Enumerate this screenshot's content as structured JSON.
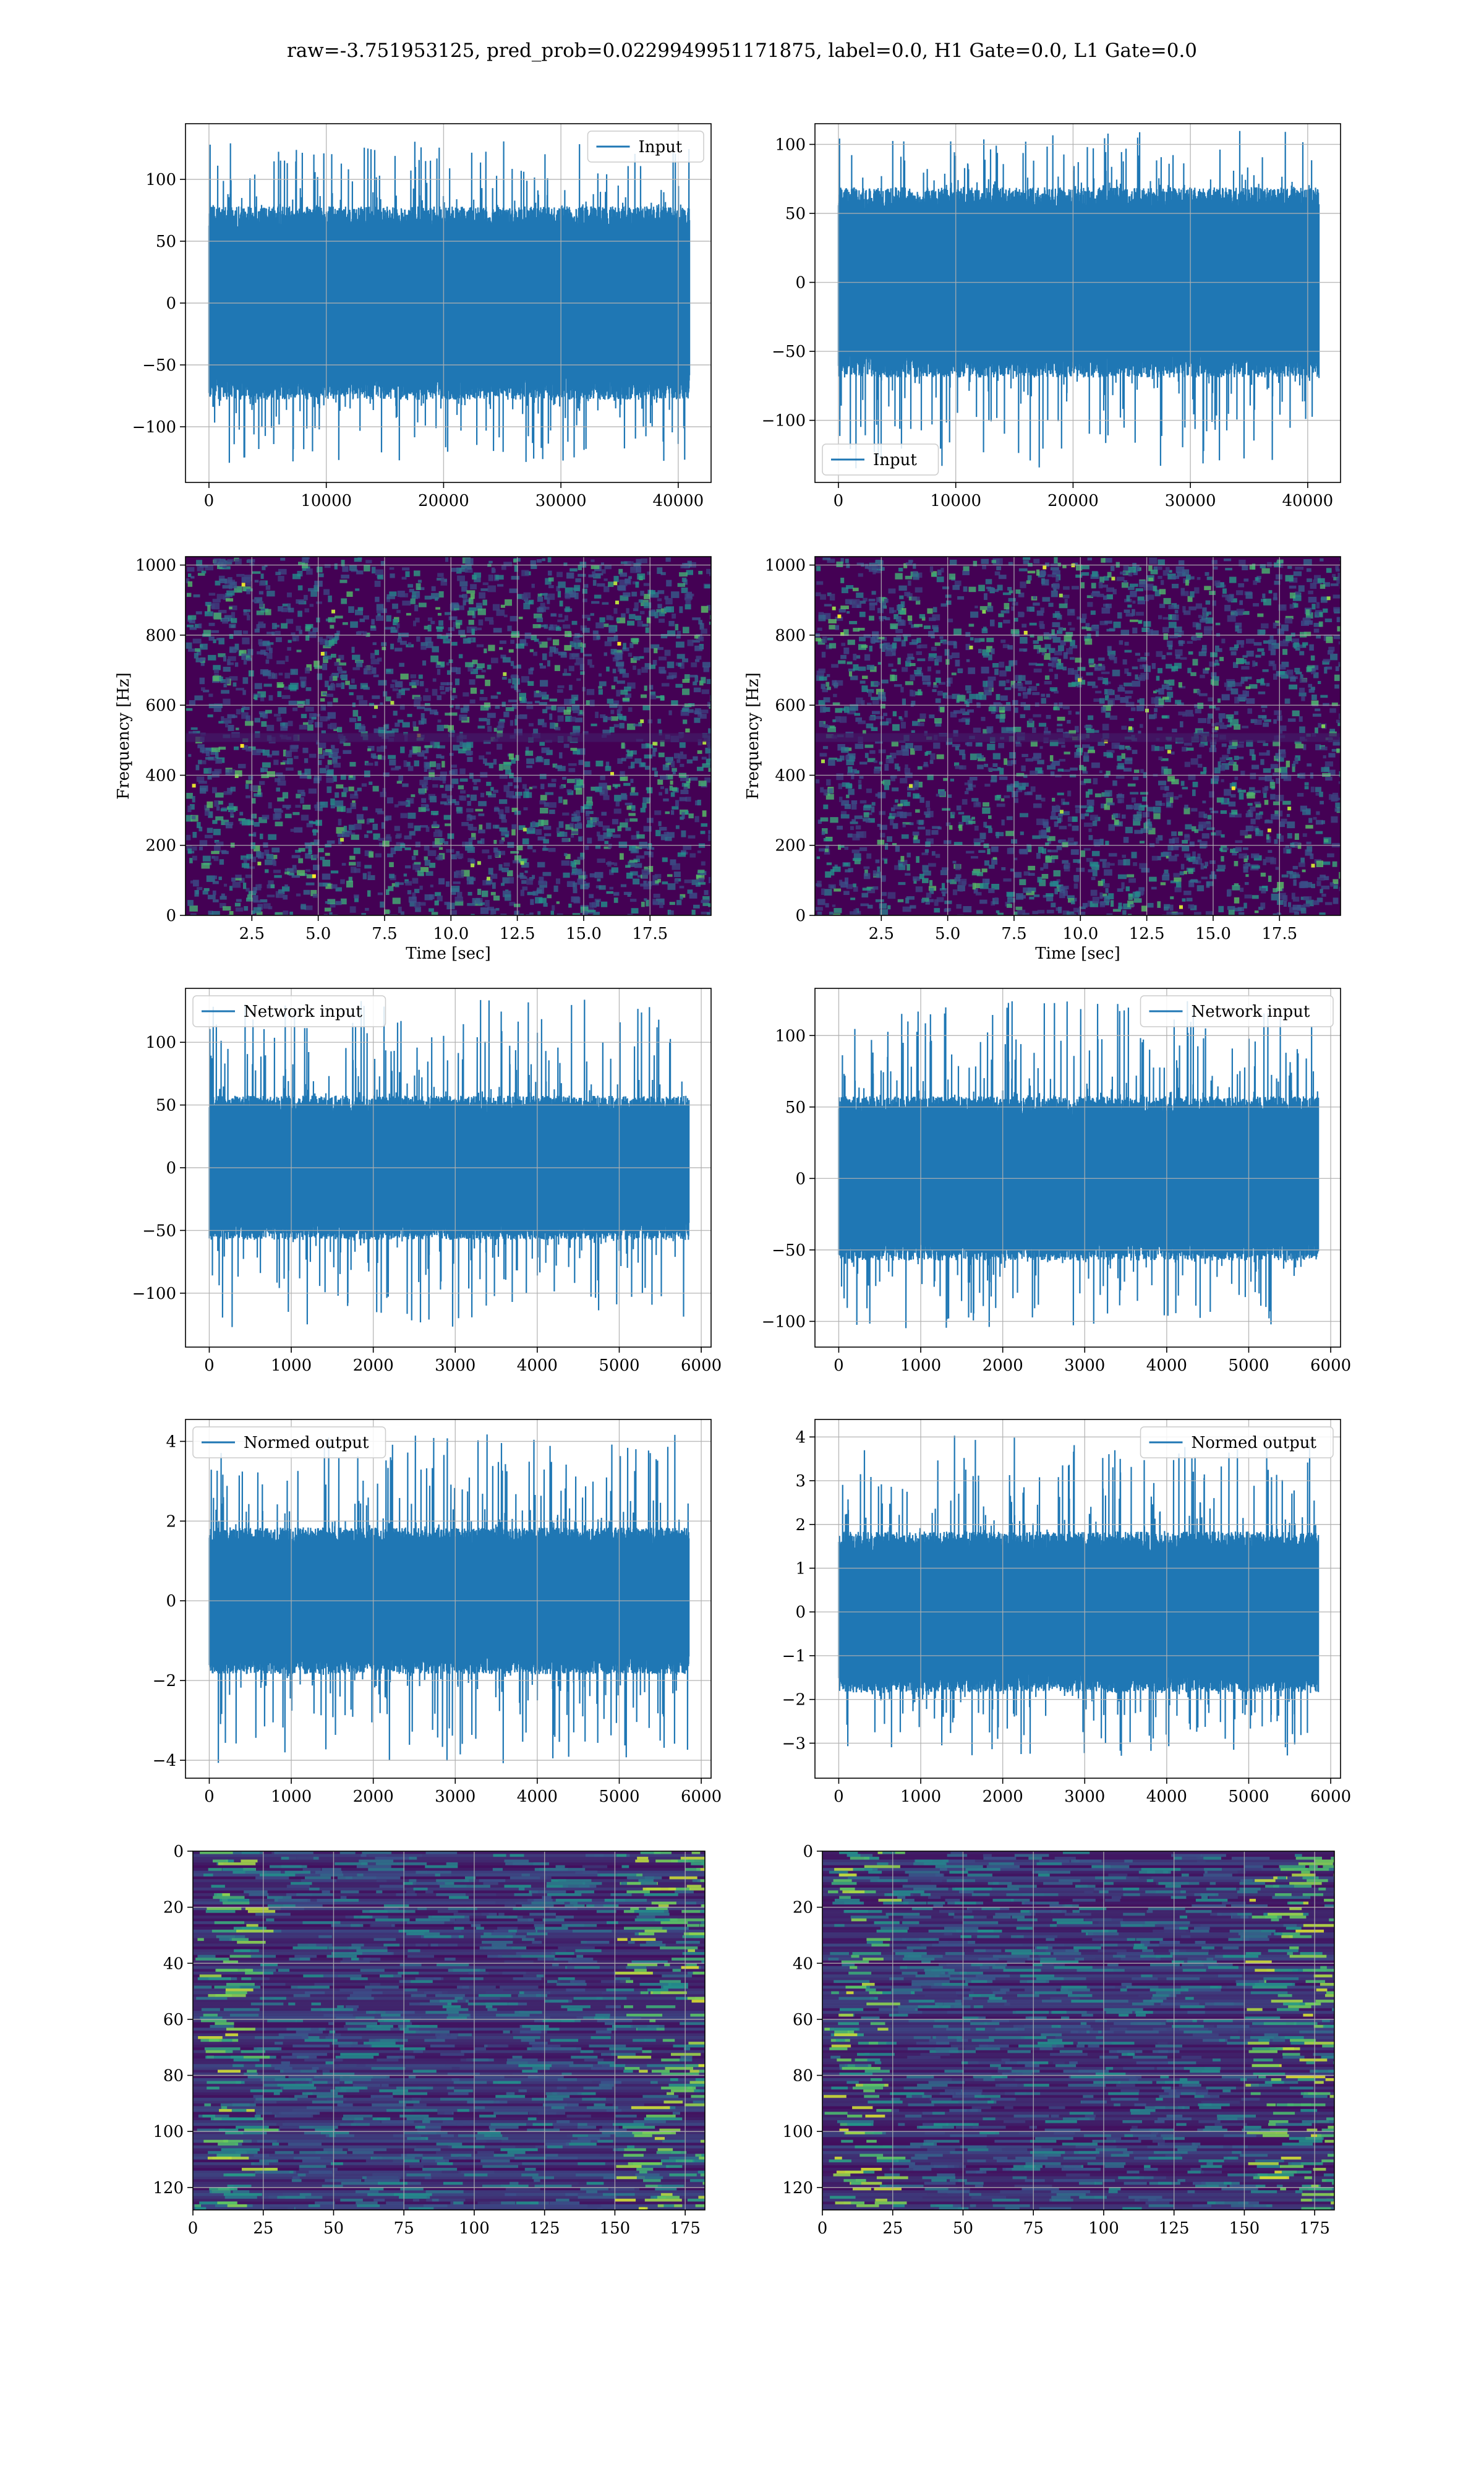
{
  "figure_title": "raw=-3.751953125, pred_prob=0.0229949951171875, label=0.0, H1 Gate=0.0, L1 Gate=0.0",
  "colors": {
    "series": "#1f77b4",
    "grid": "#b0b0b0",
    "viridis_dark": "#440154",
    "viridis_mid": "#3b528b",
    "viridis_teal": "#21918c",
    "viridis_green": "#5ec962",
    "viridis_yellow": "#fde725"
  },
  "chart_data": [
    {
      "id": "input-h1",
      "type": "line",
      "xlim": [
        -2000,
        42800
      ],
      "ylim": [
        -145,
        145
      ],
      "xticks": [
        0,
        10000,
        20000,
        30000,
        40000
      ],
      "yticks": [
        -100,
        -50,
        0,
        50,
        100
      ],
      "xticklabels": [
        "0",
        "10000",
        "20000",
        "30000",
        "40000"
      ],
      "yticklabels": [
        "−100",
        "−50",
        "0",
        "50",
        "100"
      ],
      "series": [
        {
          "name": "Input",
          "x_range": [
            0,
            40960
          ],
          "band": [
            -68,
            68
          ],
          "peaks": [
            -130,
            131
          ]
        }
      ],
      "legend": "upper right",
      "grid": true,
      "xlabel": "",
      "ylabel": ""
    },
    {
      "id": "input-l1",
      "type": "line",
      "xlim": [
        -2000,
        42800
      ],
      "ylim": [
        -145,
        115
      ],
      "xticks": [
        0,
        10000,
        20000,
        30000,
        40000
      ],
      "yticks": [
        -100,
        -50,
        0,
        50,
        100
      ],
      "xticklabels": [
        "0",
        "10000",
        "20000",
        "30000",
        "40000"
      ],
      "yticklabels": [
        "−100",
        "−50",
        "0",
        "50",
        "100"
      ],
      "series": [
        {
          "name": "Input",
          "x_range": [
            0,
            40960
          ],
          "band": [
            -60,
            60
          ],
          "peaks": [
            -135,
            110
          ]
        }
      ],
      "legend": "lower left",
      "grid": true,
      "xlabel": "",
      "ylabel": ""
    },
    {
      "id": "spec-h1",
      "type": "heatmap",
      "xlim": [
        0,
        19.8
      ],
      "ylim": [
        0,
        1024
      ],
      "xticks": [
        2.5,
        5.0,
        7.5,
        10.0,
        12.5,
        15.0,
        17.5
      ],
      "yticks": [
        0,
        200,
        400,
        600,
        800,
        1000
      ],
      "xticklabels": [
        "2.5",
        "5.0",
        "7.5",
        "10.0",
        "12.5",
        "15.0",
        "17.5"
      ],
      "yticklabels": [
        "0",
        "200",
        "400",
        "600",
        "800",
        "1000"
      ],
      "xlabel": "Time [sec]",
      "ylabel": "Frequency [Hz]",
      "grid": true,
      "colormap": "viridis",
      "seed": 11
    },
    {
      "id": "spec-l1",
      "type": "heatmap",
      "xlim": [
        0,
        19.8
      ],
      "ylim": [
        0,
        1024
      ],
      "xticks": [
        2.5,
        5.0,
        7.5,
        10.0,
        12.5,
        15.0,
        17.5
      ],
      "yticks": [
        0,
        200,
        400,
        600,
        800,
        1000
      ],
      "xticklabels": [
        "2.5",
        "5.0",
        "7.5",
        "10.0",
        "12.5",
        "15.0",
        "17.5"
      ],
      "yticklabels": [
        "0",
        "200",
        "400",
        "600",
        "800",
        "1000"
      ],
      "xlabel": "Time [sec]",
      "ylabel": "Frequency [Hz]",
      "grid": true,
      "colormap": "viridis",
      "seed": 23
    },
    {
      "id": "net-h1",
      "type": "line",
      "xlim": [
        -290,
        6120
      ],
      "ylim": [
        -143,
        143
      ],
      "xticks": [
        0,
        1000,
        2000,
        3000,
        4000,
        5000,
        6000
      ],
      "yticks": [
        -100,
        -50,
        0,
        50,
        100
      ],
      "xticklabels": [
        "0",
        "1000",
        "2000",
        "3000",
        "4000",
        "5000",
        "6000"
      ],
      "yticklabels": [
        "−100",
        "−50",
        "0",
        "50",
        "100"
      ],
      "series": [
        {
          "name": "Network input",
          "x_range": [
            0,
            5850
          ],
          "band": [
            -50,
            50
          ],
          "peaks": [
            -128,
            135
          ]
        }
      ],
      "legend": "upper left",
      "grid": true,
      "xlabel": "",
      "ylabel": ""
    },
    {
      "id": "net-l1",
      "type": "line",
      "xlim": [
        -290,
        6120
      ],
      "ylim": [
        -118,
        133
      ],
      "xticks": [
        0,
        1000,
        2000,
        3000,
        4000,
        5000,
        6000
      ],
      "yticks": [
        -100,
        -50,
        0,
        50,
        100
      ],
      "xticklabels": [
        "0",
        "1000",
        "2000",
        "3000",
        "4000",
        "5000",
        "6000"
      ],
      "yticklabels": [
        "−100",
        "−50",
        "0",
        "50",
        "100"
      ],
      "series": [
        {
          "name": "Network input",
          "x_range": [
            0,
            5850
          ],
          "band": [
            -50,
            50
          ],
          "peaks": [
            -105,
            125
          ]
        }
      ],
      "legend": "upper right",
      "grid": true,
      "xlabel": "",
      "ylabel": ""
    },
    {
      "id": "norm-h1",
      "type": "line",
      "xlim": [
        -290,
        6120
      ],
      "ylim": [
        -4.45,
        4.55
      ],
      "xticks": [
        0,
        1000,
        2000,
        3000,
        4000,
        5000,
        6000
      ],
      "yticks": [
        -4,
        -2,
        0,
        2,
        4
      ],
      "xticklabels": [
        "0",
        "1000",
        "2000",
        "3000",
        "4000",
        "5000",
        "6000"
      ],
      "yticklabels": [
        "−4",
        "−2",
        "0",
        "2",
        "4"
      ],
      "series": [
        {
          "name": "Normed output",
          "x_range": [
            0,
            5850
          ],
          "band": [
            -1.6,
            1.6
          ],
          "peaks": [
            -4.1,
            4.2
          ]
        }
      ],
      "legend": "upper left",
      "grid": true,
      "xlabel": "",
      "ylabel": ""
    },
    {
      "id": "norm-l1",
      "type": "line",
      "xlim": [
        -290,
        6120
      ],
      "ylim": [
        -3.8,
        4.4
      ],
      "xticks": [
        0,
        1000,
        2000,
        3000,
        4000,
        5000,
        6000
      ],
      "yticks": [
        -3,
        -2,
        -1,
        0,
        1,
        2,
        3,
        4
      ],
      "xticklabels": [
        "0",
        "1000",
        "2000",
        "3000",
        "4000",
        "5000",
        "6000"
      ],
      "yticklabels": [
        "−3",
        "−2",
        "−1",
        "0",
        "1",
        "2",
        "3",
        "4"
      ],
      "series": [
        {
          "name": "Normed output",
          "x_range": [
            0,
            5850
          ],
          "band": [
            -1.6,
            1.6
          ],
          "peaks": [
            -3.3,
            4.05
          ]
        }
      ],
      "legend": "upper right",
      "grid": true,
      "xlabel": "",
      "ylabel": ""
    },
    {
      "id": "feat-h1",
      "type": "heatmap",
      "xlim": [
        0,
        182
      ],
      "ylim": [
        128,
        0
      ],
      "xticks": [
        0,
        25,
        50,
        75,
        100,
        125,
        150,
        175
      ],
      "yticks": [
        0,
        20,
        40,
        60,
        80,
        100,
        120
      ],
      "xticklabels": [
        "0",
        "25",
        "50",
        "75",
        "100",
        "125",
        "150",
        "175"
      ],
      "yticklabels": [
        "0",
        "20",
        "40",
        "60",
        "80",
        "100",
        "120"
      ],
      "xlabel": "",
      "ylabel": "",
      "grid": true,
      "colormap": "viridis",
      "seed": 37
    },
    {
      "id": "feat-l1",
      "type": "heatmap",
      "xlim": [
        0,
        182
      ],
      "ylim": [
        128,
        0
      ],
      "xticks": [
        0,
        25,
        50,
        75,
        100,
        125,
        150,
        175
      ],
      "yticks": [
        0,
        20,
        40,
        60,
        80,
        100,
        120
      ],
      "xticklabels": [
        "0",
        "25",
        "50",
        "75",
        "100",
        "125",
        "150",
        "175"
      ],
      "yticklabels": [
        "0",
        "20",
        "40",
        "60",
        "80",
        "100",
        "120"
      ],
      "xlabel": "",
      "ylabel": "",
      "grid": true,
      "colormap": "viridis",
      "seed": 53
    }
  ]
}
